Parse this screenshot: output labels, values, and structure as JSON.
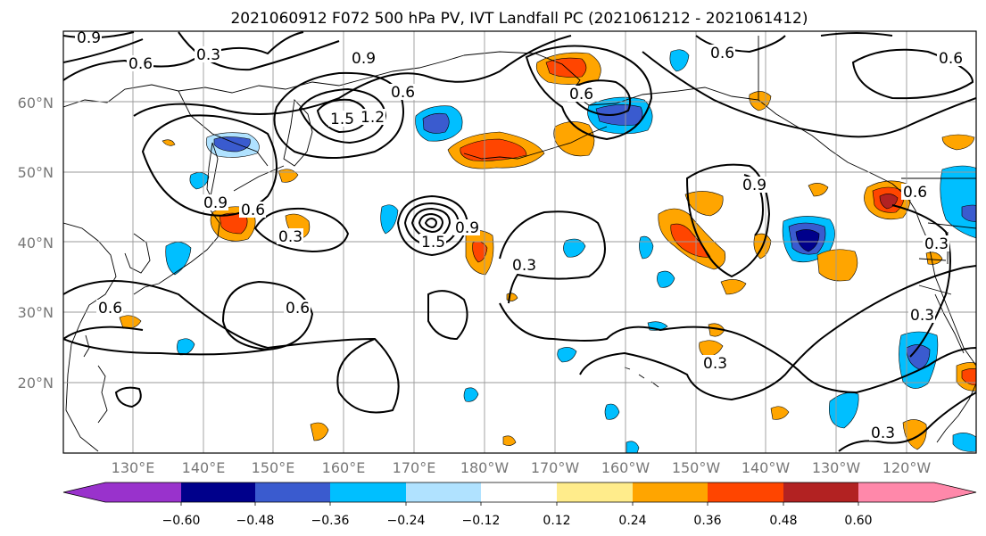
{
  "title": "2021060912 F072 500 hPa PV, IVT Landfall PC (2021061212 - 2021061412)",
  "lat_labels": [
    "60°N",
    "50°N",
    "40°N",
    "30°N",
    "20°N"
  ],
  "lon_labels": [
    "130°E",
    "140°E",
    "150°E",
    "160°E",
    "170°E",
    "180°W",
    "170°W",
    "160°W",
    "150°W",
    "140°W",
    "130°W",
    "120°W"
  ],
  "colorbar": {
    "tick_labels": [
      "−0.60",
      "−0.48",
      "−0.36",
      "−0.24",
      "−0.12",
      "0.12",
      "0.24",
      "0.36",
      "0.48",
      "0.60"
    ],
    "colors": [
      "#9932cc",
      "#00008b",
      "#3a5bcf",
      "#00bfff",
      "#b0e2ff",
      "#ffffff",
      "#ffec8b",
      "#ffa500",
      "#ff4500",
      "#b22222",
      "#ff88aa"
    ]
  },
  "contour_labels": [
    "0.9",
    "0.6",
    "0.3",
    "0.9",
    "0.6",
    "1.5",
    "1.2",
    "0.6",
    "0.6",
    "0.9",
    "0.3",
    "0.6",
    "1.5",
    "0.9",
    "0.3",
    "0.6",
    "0.6",
    "0.9",
    "0.3",
    "0.6",
    "0.3",
    "0.3",
    "0.3",
    "0.6"
  ]
}
